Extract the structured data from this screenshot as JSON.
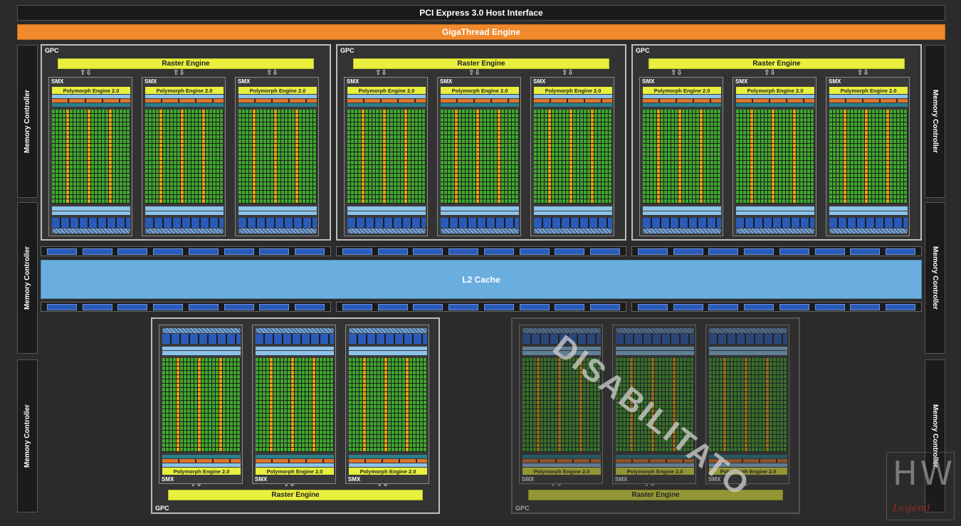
{
  "pcie_label": "PCI Express 3.0 Host Interface",
  "gigathread_label": "GigaThread Engine",
  "memory_controller_label": "Memory Controller",
  "l2_label": "L2 Cache",
  "gpc_label": "GPC",
  "raster_label": "Raster Engine",
  "smx_label": "SMX",
  "polymorph_label": "Polymorph Engine 2.0",
  "disabled_label": "DISABILITATO",
  "watermark": {
    "top": "HW",
    "bottom": "Legend"
  },
  "colors": {
    "core": "#3fa82e",
    "special": "#f2a20e",
    "raster": "#e8ef3e",
    "l2": "#6aaedf",
    "gigathread": "#f08a2c",
    "dark_blue": "#2a5bb8",
    "light_blue": "#8cc3ea"
  }
}
